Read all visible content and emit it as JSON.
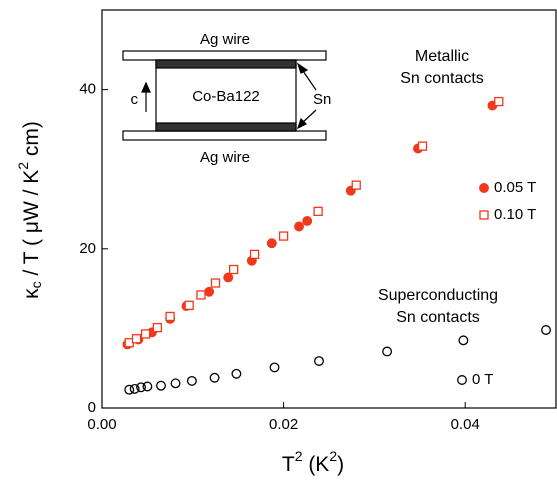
{
  "chart_data": {
    "type": "scatter",
    "xlabel_parts": [
      "T",
      "2",
      " (K",
      "2",
      ")"
    ],
    "ylabel_parts": [
      "κ",
      "c",
      " / T ( μW / K",
      "2",
      " cm)"
    ],
    "xlim": [
      0,
      0.05
    ],
    "ylim": [
      0,
      50
    ],
    "xticks": [
      {
        "value": 0,
        "label": "0.00"
      },
      0.02,
      0.04
    ],
    "yticks": [
      0,
      20,
      40
    ],
    "series": [
      {
        "name": "0.05 T",
        "color": "#f0381c",
        "marker": "filled-circle",
        "x": [
          0.0028,
          0.004,
          0.0055,
          0.0075,
          0.0093,
          0.0118,
          0.0139,
          0.0165,
          0.0187,
          0.0217,
          0.0226,
          0.0274,
          0.0348,
          0.043
        ],
        "values": [
          8.0,
          8.6,
          9.5,
          11.2,
          12.8,
          14.6,
          16.4,
          18.5,
          20.7,
          22.8,
          23.5,
          27.3,
          32.6,
          38.0
        ]
      },
      {
        "name": "0.10 T",
        "color": "#f0381c",
        "marker": "open-square",
        "x": [
          0.003,
          0.0038,
          0.0048,
          0.0061,
          0.0075,
          0.0096,
          0.0109,
          0.0125,
          0.0145,
          0.0168,
          0.02,
          0.0238,
          0.028,
          0.0353,
          0.0437
        ],
        "values": [
          8.2,
          8.7,
          9.3,
          10.1,
          11.5,
          12.9,
          14.2,
          15.7,
          17.4,
          19.3,
          21.6,
          24.7,
          28.0,
          32.9,
          38.5
        ]
      },
      {
        "name": "0 T",
        "color": "#000000",
        "marker": "open-circle",
        "x": [
          0.003,
          0.0036,
          0.0043,
          0.005,
          0.0065,
          0.0081,
          0.0099,
          0.0124,
          0.0148,
          0.019,
          0.0239,
          0.0314,
          0.0398,
          0.0489
        ],
        "values": [
          2.3,
          2.4,
          2.6,
          2.7,
          2.8,
          3.1,
          3.4,
          3.8,
          4.3,
          5.1,
          5.9,
          7.1,
          8.5,
          9.8
        ]
      }
    ],
    "annotations": [
      {
        "lines": [
          "Metallic",
          "Sn contacts"
        ],
        "color": "#f0381c"
      },
      {
        "lines": [
          "Superconducting",
          "Sn contacts"
        ],
        "color": "#000000"
      }
    ],
    "inset": {
      "top_wire": "Ag wire",
      "sample": "Co-Ba122",
      "contact": "Sn",
      "axis": "c",
      "bottom_wire": "Ag wire"
    }
  }
}
